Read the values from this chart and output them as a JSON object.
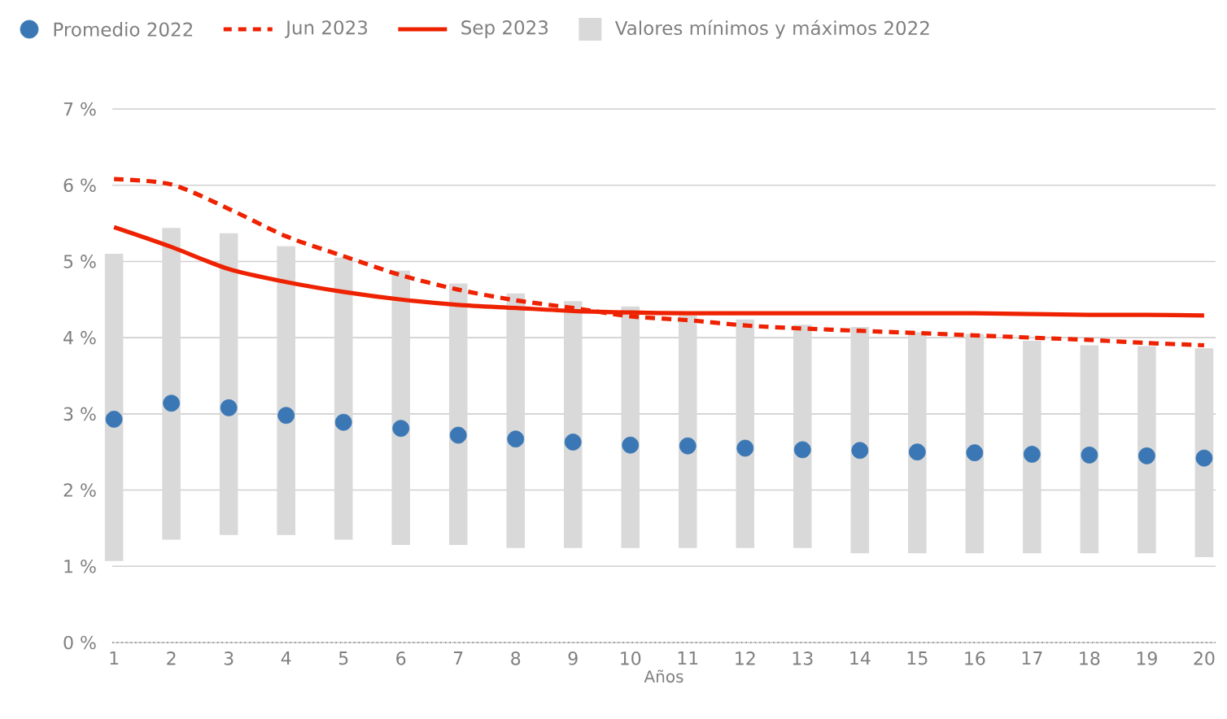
{
  "chart_data": {
    "type": "bar",
    "xlabel": "Años",
    "categories": [
      "1",
      "2",
      "3",
      "4",
      "5",
      "6",
      "7",
      "8",
      "9",
      "10",
      "11",
      "12",
      "13",
      "14",
      "15",
      "16",
      "17",
      "18",
      "19",
      "20"
    ],
    "series": [
      {
        "name": "Promedio 2022",
        "type": "scatter",
        "marker": "circle",
        "color": "#3a77b4",
        "values": [
          2.93,
          3.14,
          3.08,
          2.98,
          2.89,
          2.81,
          2.72,
          2.67,
          2.63,
          2.59,
          2.58,
          2.55,
          2.53,
          2.52,
          2.5,
          2.49,
          2.47,
          2.46,
          2.45,
          2.42
        ]
      },
      {
        "name": "Jun 2023",
        "type": "line",
        "line_style": "dashed",
        "color": "#ee2200",
        "values": [
          6.08,
          6.01,
          5.69,
          5.33,
          5.07,
          4.82,
          4.63,
          4.49,
          4.39,
          4.28,
          4.23,
          4.16,
          4.12,
          4.09,
          4.06,
          4.03,
          4.0,
          3.97,
          3.93,
          3.9
        ]
      },
      {
        "name": "Sep 2023",
        "type": "line",
        "line_style": "solid",
        "color": "#ee2200",
        "values": [
          5.45,
          5.19,
          4.9,
          4.73,
          4.6,
          4.5,
          4.43,
          4.39,
          4.35,
          4.33,
          4.32,
          4.32,
          4.32,
          4.32,
          4.32,
          4.32,
          4.31,
          4.3,
          4.3,
          4.29
        ]
      },
      {
        "name": "Valores mínimos y máximos 2022",
        "color": "#d9d9d9",
        "base": [
          1.07,
          1.35,
          1.41,
          1.41,
          1.35,
          1.28,
          1.28,
          1.24,
          1.24,
          1.24,
          1.24,
          1.24,
          1.24,
          1.17,
          1.17,
          1.17,
          1.17,
          1.17,
          1.17,
          1.12
        ],
        "values": [
          4.03,
          4.09,
          3.96,
          3.79,
          3.7,
          3.6,
          3.43,
          3.34,
          3.24,
          3.17,
          3.05,
          3.0,
          2.93,
          2.97,
          2.9,
          2.88,
          2.79,
          2.73,
          2.72,
          2.74
        ]
      }
    ],
    "ylim": [
      0,
      7
    ],
    "yticks": [
      {
        "value": 0,
        "label": "0 %"
      },
      {
        "value": 1,
        "label": "1 %"
      },
      {
        "value": 2,
        "label": "2 %"
      },
      {
        "value": 3,
        "label": "3 %"
      },
      {
        "value": 4,
        "label": "4 %"
      },
      {
        "value": 5,
        "label": "5 %"
      },
      {
        "value": 6,
        "label": "6 %"
      },
      {
        "value": 7,
        "label": "7 %"
      }
    ],
    "grid": "y",
    "legend": "top"
  }
}
